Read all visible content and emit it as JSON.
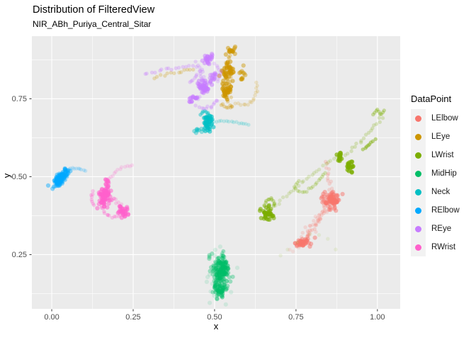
{
  "chart_data": {
    "type": "scatter",
    "title": "Distribution of FilteredView",
    "subtitle": "NIR_ABh_Puriya_Central_Sitar",
    "xlabel": "x",
    "ylabel": "y",
    "xlim": [
      -0.061,
      1.07
    ],
    "ylim": [
      0.076,
      0.951
    ],
    "x_ticks": [
      0,
      0.25,
      0.5,
      0.75,
      1
    ],
    "x_tick_labels": [
      "0.00",
      "0.25",
      "0.50",
      "0.75",
      "1.00"
    ],
    "y_ticks": [
      0.25,
      0.5,
      0.75
    ],
    "y_tick_labels": [
      "0.25",
      "0.50",
      "0.75"
    ],
    "grid": {
      "major": true,
      "minor": true
    },
    "colors": {
      "panel_bg": "#EBEBEB",
      "grid": "#FFFFFF",
      "tick_label": "#4D4D4D",
      "tick_mark": "#333333",
      "axis_title": "#000000",
      "legend_key_bg": "#F2F2F2",
      "background": "#FFFFFF"
    },
    "legend": {
      "title": "DataPoint",
      "position": "right"
    },
    "series": [
      {
        "name": "LElbow",
        "color": "#F8766D",
        "clusters": [
          {
            "cx": 0.861,
            "cy": 0.422,
            "rx": 0.03,
            "ry": 0.027,
            "n": 60,
            "alpha": 0.5
          },
          {
            "cx": 0.862,
            "cy": 0.425,
            "rx": 0.015,
            "ry": 0.014,
            "n": 25,
            "alpha": 0.6
          },
          {
            "cx": 0.771,
            "cy": 0.288,
            "rx": 0.026,
            "ry": 0.015,
            "n": 30,
            "alpha": 0.5
          },
          {
            "cx": 0.77,
            "cy": 0.286,
            "rx": 0.013,
            "ry": 0.008,
            "n": 14,
            "alpha": 0.6
          }
        ],
        "trails": [
          {
            "path": [
              [
                0.775,
                0.3
              ],
              [
                0.796,
                0.335
              ],
              [
                0.82,
                0.37
              ],
              [
                0.843,
                0.398
              ],
              [
                0.856,
                0.412
              ]
            ],
            "n": 30,
            "jitter": 0.014,
            "alpha": 0.2
          },
          {
            "path": [
              [
                0.78,
                0.298
              ],
              [
                0.81,
                0.345
              ],
              [
                0.84,
                0.395
              ]
            ],
            "n": 16,
            "jitter": 0.006,
            "alpha": 0.25
          },
          {
            "path": [
              [
                0.857,
                0.448
              ],
              [
                0.85,
                0.492
              ],
              [
                0.844,
                0.545
              ]
            ],
            "n": 13,
            "jitter": 0.005,
            "alpha": 0.22
          },
          {
            "path": [
              [
                0.74,
                0.27
              ],
              [
                0.76,
                0.28
              ]
            ],
            "n": 5,
            "jitter": 0.012,
            "alpha": 0.15
          }
        ]
      },
      {
        "name": "LEye",
        "color": "#CD9600",
        "clusters": [
          {
            "cx": 0.541,
            "cy": 0.841,
            "rx": 0.021,
            "ry": 0.028,
            "n": 45,
            "alpha": 0.55
          },
          {
            "cx": 0.537,
            "cy": 0.778,
            "rx": 0.019,
            "ry": 0.024,
            "n": 38,
            "alpha": 0.55
          },
          {
            "cx": 0.552,
            "cy": 0.903,
            "rx": 0.016,
            "ry": 0.014,
            "n": 16,
            "alpha": 0.5
          },
          {
            "cx": 0.585,
            "cy": 0.832,
            "rx": 0.011,
            "ry": 0.02,
            "n": 12,
            "alpha": 0.45
          }
        ],
        "trails": [
          {
            "path": [
              [
                0.548,
                0.898
              ],
              [
                0.541,
                0.862
              ],
              [
                0.538,
                0.82
              ],
              [
                0.538,
                0.788
              ],
              [
                0.542,
                0.756
              ],
              [
                0.547,
                0.73
              ]
            ],
            "n": 24,
            "jitter": 0.01,
            "alpha": 0.3
          },
          {
            "path": [
              [
                0.565,
                0.735
              ],
              [
                0.592,
                0.728
              ],
              [
                0.617,
                0.742
              ],
              [
                0.63,
                0.772
              ],
              [
                0.628,
                0.8
              ]
            ],
            "n": 16,
            "jitter": 0.004,
            "alpha": 0.18
          },
          {
            "path": [
              [
                0.315,
                0.82
              ],
              [
                0.355,
                0.828
              ],
              [
                0.398,
                0.836
              ],
              [
                0.436,
                0.844
              ]
            ],
            "n": 13,
            "jitter": 0.005,
            "alpha": 0.25
          },
          {
            "path": [
              [
                0.52,
                0.73
              ],
              [
                0.54,
                0.722
              ],
              [
                0.558,
                0.728
              ]
            ],
            "n": 8,
            "jitter": 0.004,
            "alpha": 0.3
          }
        ]
      },
      {
        "name": "LWrist",
        "color": "#7CAE00",
        "clusters": [
          {
            "cx": 0.663,
            "cy": 0.381,
            "rx": 0.02,
            "ry": 0.022,
            "n": 40,
            "alpha": 0.6
          },
          {
            "cx": 0.884,
            "cy": 0.566,
            "rx": 0.009,
            "ry": 0.016,
            "n": 16,
            "alpha": 0.7
          },
          {
            "cx": 0.915,
            "cy": 0.533,
            "rx": 0.012,
            "ry": 0.019,
            "n": 20,
            "alpha": 0.7
          }
        ],
        "trails": [
          {
            "path": [
              [
                0.652,
                0.404
              ],
              [
                0.66,
                0.424
              ],
              [
                0.674,
                0.432
              ],
              [
                0.684,
                0.418
              ],
              [
                0.68,
                0.405
              ]
            ],
            "n": 12,
            "jitter": 0.003,
            "alpha": 0.35
          },
          {
            "path": [
              [
                0.688,
                0.408
              ],
              [
                0.728,
                0.445
              ],
              [
                0.766,
                0.48
              ],
              [
                0.806,
                0.513
              ],
              [
                0.846,
                0.543
              ],
              [
                0.876,
                0.56
              ]
            ],
            "n": 24,
            "jitter": 0.004,
            "alpha": 0.18
          },
          {
            "path": [
              [
                0.76,
                0.487
              ],
              [
                0.745,
                0.468
              ],
              [
                0.758,
                0.45
              ],
              [
                0.782,
                0.452
              ],
              [
                0.803,
                0.47
              ],
              [
                0.822,
                0.492
              ],
              [
                0.84,
                0.512
              ]
            ],
            "n": 20,
            "jitter": 0.003,
            "alpha": 0.25
          },
          {
            "path": [
              [
                1.018,
                0.693
              ],
              [
                0.988,
                0.658
              ],
              [
                0.958,
                0.624
              ],
              [
                0.928,
                0.592
              ],
              [
                0.902,
                0.57
              ]
            ],
            "n": 18,
            "jitter": 0.005,
            "alpha": 0.22
          },
          {
            "path": [
              [
                0.985,
                0.7
              ],
              [
                1.0,
                0.716
              ],
              [
                1.01,
                0.698
              ],
              [
                1.022,
                0.712
              ]
            ],
            "n": 9,
            "jitter": 0.002,
            "alpha": 0.35
          },
          {
            "path": [
              [
                0.956,
                0.588
              ],
              [
                0.978,
                0.606
              ],
              [
                0.992,
                0.618
              ]
            ],
            "n": 8,
            "jitter": 0.003,
            "alpha": 0.45
          },
          {
            "path": [
              [
                0.7,
                0.248
              ],
              [
                0.76,
                0.295
              ],
              [
                0.82,
                0.32
              ],
              [
                0.872,
                0.27
              ]
            ],
            "n": 7,
            "jitter": 0.01,
            "alpha": 0.1
          }
        ]
      },
      {
        "name": "MidHip",
        "color": "#00BE67",
        "clusters": [
          {
            "cx": 0.517,
            "cy": 0.183,
            "rx": 0.03,
            "ry": 0.066,
            "n": 110,
            "alpha": 0.35
          },
          {
            "cx": 0.522,
            "cy": 0.208,
            "rx": 0.016,
            "ry": 0.036,
            "n": 55,
            "alpha": 0.55
          },
          {
            "cx": 0.512,
            "cy": 0.138,
            "rx": 0.014,
            "ry": 0.024,
            "n": 32,
            "alpha": 0.5
          },
          {
            "cx": 0.517,
            "cy": 0.18,
            "rx": 0.044,
            "ry": 0.085,
            "n": 28,
            "alpha": 0.12
          }
        ],
        "trails": [
          {
            "path": [
              [
                0.528,
                0.262
              ],
              [
                0.52,
                0.243
              ]
            ],
            "n": 4,
            "jitter": 0.004,
            "alpha": 0.3
          }
        ]
      },
      {
        "name": "Neck",
        "color": "#00BFC4",
        "clusters": [
          {
            "cx": 0.479,
            "cy": 0.672,
            "rx": 0.014,
            "ry": 0.026,
            "n": 45,
            "alpha": 0.6
          },
          {
            "cx": 0.451,
            "cy": 0.649,
            "rx": 0.013,
            "ry": 0.007,
            "n": 9,
            "alpha": 0.4
          }
        ],
        "trails": [
          {
            "path": [
              [
                0.498,
                0.676
              ],
              [
                0.528,
                0.679
              ],
              [
                0.558,
                0.676
              ],
              [
                0.585,
                0.671
              ],
              [
                0.605,
                0.668
              ]
            ],
            "n": 15,
            "jitter": 0.002,
            "alpha": 0.2
          },
          {
            "path": [
              [
                0.455,
                0.7
              ],
              [
                0.468,
                0.712
              ],
              [
                0.482,
                0.703
              ],
              [
                0.47,
                0.69
              ]
            ],
            "n": 9,
            "jitter": 0.002,
            "alpha": 0.45
          }
        ]
      },
      {
        "name": "RElbow",
        "color": "#00A9FF",
        "clusters": [
          {
            "cx": 0.027,
            "cy": 0.495,
            "rx": 0.034,
            "ry": 0.015,
            "angle": 52,
            "n": 80,
            "alpha": 0.45
          },
          {
            "cx": 0.024,
            "cy": 0.49,
            "rx": 0.018,
            "ry": 0.01,
            "angle": 52,
            "n": 35,
            "alpha": 0.6
          }
        ],
        "trails": [
          {
            "path": [
              [
                0.047,
                0.523
              ],
              [
                0.066,
                0.528
              ],
              [
                0.086,
                0.526
              ],
              [
                0.103,
                0.519
              ]
            ],
            "n": 11,
            "jitter": 0.002,
            "alpha": 0.18
          }
        ]
      },
      {
        "name": "REye",
        "color": "#C77CFF",
        "clusters": [
          {
            "cx": 0.468,
            "cy": 0.788,
            "rx": 0.019,
            "ry": 0.021,
            "n": 45,
            "alpha": 0.55
          },
          {
            "cx": 0.483,
            "cy": 0.878,
            "rx": 0.015,
            "ry": 0.02,
            "n": 26,
            "alpha": 0.5
          },
          {
            "cx": 0.433,
            "cy": 0.747,
            "rx": 0.011,
            "ry": 0.013,
            "n": 14,
            "alpha": 0.55
          },
          {
            "cx": 0.497,
            "cy": 0.82,
            "rx": 0.011,
            "ry": 0.016,
            "n": 14,
            "alpha": 0.45
          }
        ],
        "trails": [
          {
            "path": [
              [
                0.285,
                0.831
              ],
              [
                0.322,
                0.838
              ],
              [
                0.36,
                0.845
              ],
              [
                0.398,
                0.851
              ],
              [
                0.433,
                0.857
              ]
            ],
            "n": 15,
            "jitter": 0.004,
            "alpha": 0.3
          },
          {
            "path": [
              [
                0.444,
                0.868
              ],
              [
                0.462,
                0.838
              ],
              [
                0.478,
                0.803
              ],
              [
                0.463,
                0.772
              ],
              [
                0.444,
                0.748
              ]
            ],
            "n": 20,
            "jitter": 0.01,
            "alpha": 0.28
          },
          {
            "path": [
              [
                0.448,
                0.728
              ],
              [
                0.468,
                0.718
              ],
              [
                0.496,
                0.728
              ],
              [
                0.512,
                0.748
              ]
            ],
            "n": 12,
            "jitter": 0.005,
            "alpha": 0.3
          },
          {
            "path": [
              [
                0.5,
                0.862
              ],
              [
                0.518,
                0.84
              ],
              [
                0.512,
                0.806
              ]
            ],
            "n": 10,
            "jitter": 0.004,
            "alpha": 0.25
          },
          {
            "path": [
              [
                0.425,
                0.8
              ],
              [
                0.443,
                0.82
              ],
              [
                0.462,
                0.844
              ]
            ],
            "n": 9,
            "jitter": 0.004,
            "alpha": 0.3
          }
        ]
      },
      {
        "name": "RWrist",
        "color": "#FF61CC",
        "clusters": [
          {
            "cx": 0.163,
            "cy": 0.436,
            "rx": 0.018,
            "ry": 0.036,
            "n": 60,
            "alpha": 0.55
          },
          {
            "cx": 0.165,
            "cy": 0.445,
            "rx": 0.01,
            "ry": 0.018,
            "n": 25,
            "alpha": 0.65
          },
          {
            "cx": 0.216,
            "cy": 0.392,
            "rx": 0.016,
            "ry": 0.02,
            "n": 30,
            "alpha": 0.55
          },
          {
            "cx": 0.17,
            "cy": 0.487,
            "rx": 0.009,
            "ry": 0.01,
            "n": 10,
            "alpha": 0.5
          }
        ],
        "trails": [
          {
            "path": [
              [
                0.178,
                0.492
              ],
              [
                0.198,
                0.518
              ],
              [
                0.222,
                0.533
              ],
              [
                0.247,
                0.536
              ]
            ],
            "n": 12,
            "jitter": 0.003,
            "alpha": 0.18
          },
          {
            "path": [
              [
                0.15,
                0.408
              ],
              [
                0.163,
                0.383
              ],
              [
                0.186,
                0.37
              ],
              [
                0.21,
                0.373
              ],
              [
                0.228,
                0.386
              ]
            ],
            "n": 16,
            "jitter": 0.004,
            "alpha": 0.3
          },
          {
            "path": [
              [
                0.128,
                0.452
              ],
              [
                0.121,
                0.43
              ],
              [
                0.131,
                0.41
              ]
            ],
            "n": 8,
            "jitter": 0.003,
            "alpha": 0.3
          },
          {
            "path": [
              [
                0.19,
                0.43
              ],
              [
                0.205,
                0.415
              ],
              [
                0.218,
                0.402
              ]
            ],
            "n": 8,
            "jitter": 0.005,
            "alpha": 0.25
          }
        ]
      }
    ]
  }
}
